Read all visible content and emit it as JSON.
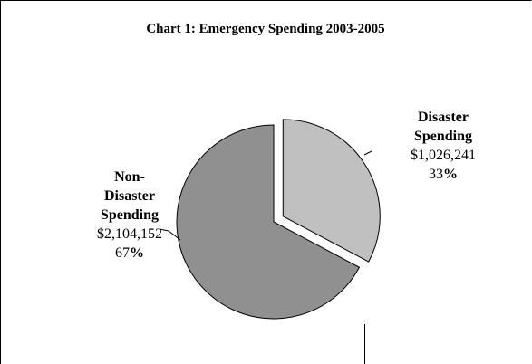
{
  "chart_data": {
    "type": "pie",
    "title": "Chart 1: Emergency Spending 2003-2005",
    "categories": [
      "Disaster Spending",
      "Non-Disaster Spending"
    ],
    "values": [
      1026241,
      2104152
    ],
    "value_labels": [
      "$1,026,241",
      "$2,104,152"
    ],
    "percent_numbers": [
      "33",
      "67"
    ],
    "percent_sign": "%",
    "label_lines": [
      [
        "Disaster",
        "Spending"
      ],
      [
        "Non-",
        "Disaster",
        "Spending"
      ]
    ],
    "exploded": [
      true,
      false
    ],
    "start_angle_deg": 0,
    "direction": "clockwise",
    "colors": [
      "#c0c0c0",
      "#909090"
    ],
    "legend": "none"
  },
  "colors": {
    "background": "#ffffff",
    "border": "#000000",
    "slice_edge": "#000000"
  }
}
